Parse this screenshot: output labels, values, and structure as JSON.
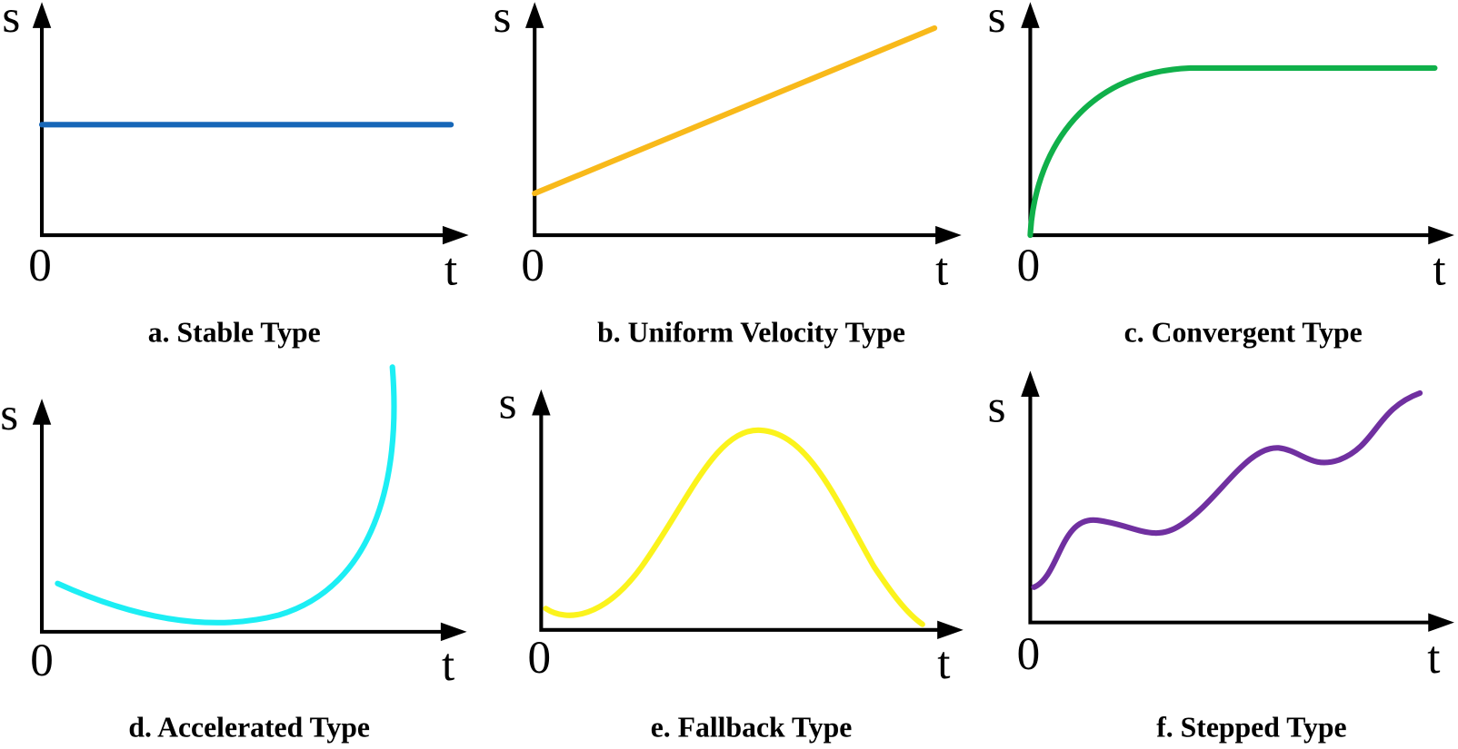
{
  "panels": [
    {
      "y_label": "s",
      "origin": "0",
      "x_label": "t",
      "caption": "a. Stable Type"
    },
    {
      "y_label": "s",
      "origin": "0",
      "x_label": "t",
      "caption": "b. Uniform Velocity Type"
    },
    {
      "y_label": "s",
      "origin": "0",
      "x_label": "t",
      "caption": "c. Convergent Type"
    },
    {
      "y_label": "s",
      "origin": "0",
      "x_label": "t",
      "caption": "d. Accelerated Type"
    },
    {
      "y_label": "s",
      "origin": "0",
      "x_label": "t",
      "caption": "e. Fallback Type"
    },
    {
      "y_label": "s",
      "origin": "0",
      "x_label": "t",
      "caption": "f. Stepped Type"
    }
  ]
}
